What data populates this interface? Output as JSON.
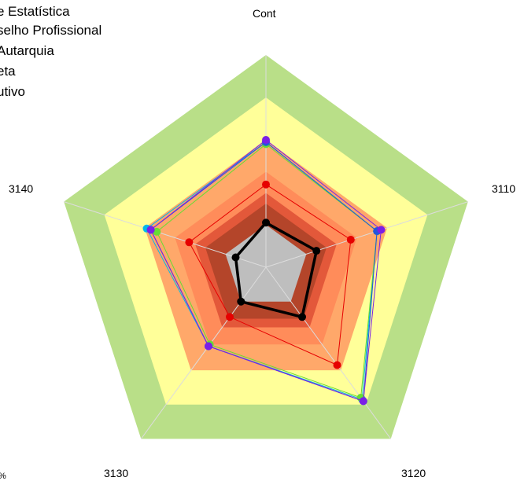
{
  "legend": {
    "items": [
      {
        "label": "e Estatística",
        "color": "#00b7eb"
      },
      {
        "label": "selho Profissional",
        "color": "#66dd33"
      },
      {
        "label": "Autarquia",
        "color": "#2255dd"
      },
      {
        "label": "eta",
        "color": "#7a1fe6"
      },
      {
        "label": "utivo",
        "color": "#e60000"
      }
    ]
  },
  "corner_note": "%",
  "chart_data": {
    "type": "radar",
    "axes": [
      "Cont",
      "3110",
      "3120",
      "3130",
      "3140"
    ],
    "rlim": [
      0,
      100
    ],
    "grid": false,
    "legend_position": "top-left",
    "bands": [
      {
        "from": 0,
        "to": 20,
        "color": "#bebebe"
      },
      {
        "from": 20,
        "to": 30,
        "color": "#b4452a"
      },
      {
        "from": 30,
        "to": 35,
        "color": "#e3583a"
      },
      {
        "from": 35,
        "to": 45,
        "color": "#ff8c5a"
      },
      {
        "from": 45,
        "to": 60,
        "color": "#ffa86a"
      },
      {
        "from": 60,
        "to": 80,
        "color": "#ffff99"
      },
      {
        "from": 80,
        "to": 100,
        "color": "#b9df88"
      }
    ],
    "series": [
      {
        "values": [
          59,
          55,
          77,
          46,
          59
        ],
        "color": "#00b7eb"
      },
      {
        "values": [
          58,
          55,
          76,
          45,
          54
        ],
        "color": "#66dd33"
      },
      {
        "values": [
          59,
          55,
          78,
          46,
          57
        ],
        "color": "#2255dd"
      },
      {
        "values": [
          60,
          57,
          78,
          46,
          57
        ],
        "color": "#7a1fe6"
      },
      {
        "values": [
          39,
          42,
          57,
          29,
          38
        ],
        "color": "#e60000"
      },
      {
        "values": [
          21,
          25,
          29,
          20,
          15
        ],
        "color": "#000000"
      }
    ]
  }
}
